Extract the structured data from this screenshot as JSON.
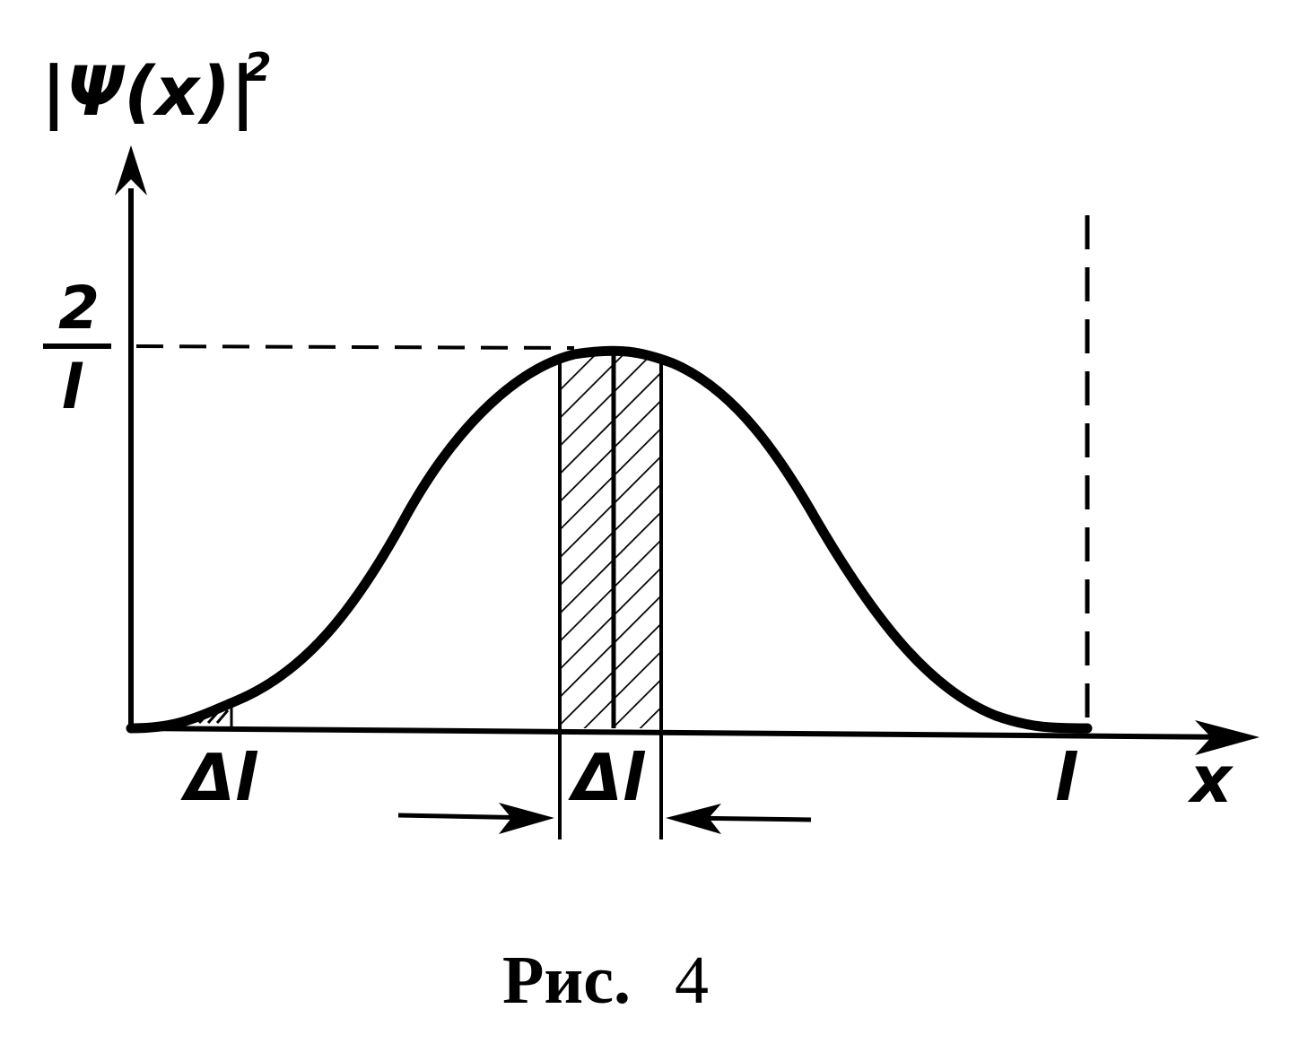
{
  "figure": {
    "y_axis_label": "|Ψ(x)|",
    "y_axis_label_power": "2",
    "x_axis_label": "x",
    "y_tick_numerator": "2",
    "y_tick_denominator": "l",
    "x_end_label": "l",
    "interval_left_label": "Δl",
    "interval_center_label": "Δl"
  },
  "caption": {
    "prefix": "Рис.",
    "number": "4"
  },
  "colors": {
    "ink": "#000000",
    "paper": "#ffffff"
  }
}
